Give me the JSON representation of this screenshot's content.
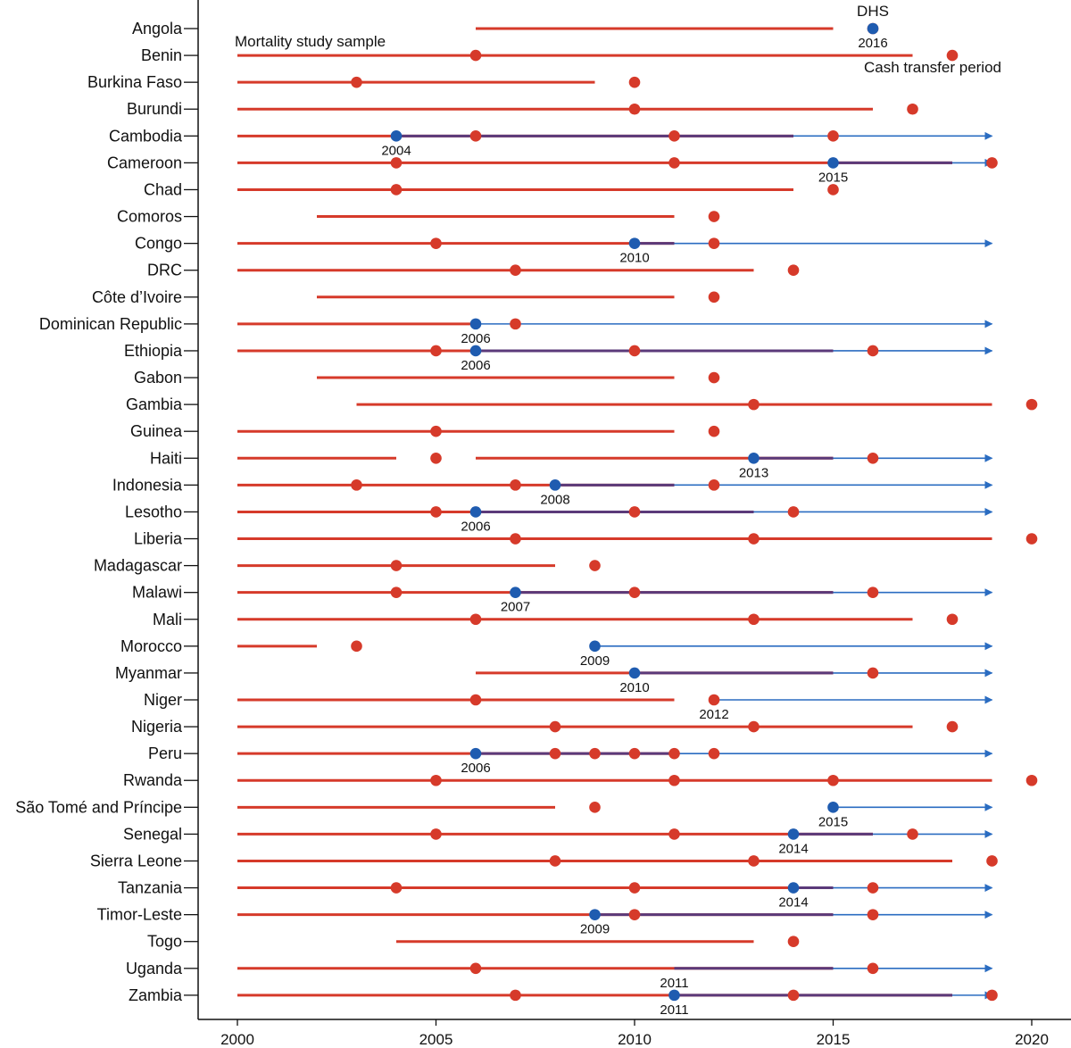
{
  "chart_data": {
    "type": "timeline",
    "xlim": [
      2000,
      2020
    ],
    "x_ticks": [
      "2000",
      "2005",
      "2010",
      "2015",
      "2020"
    ],
    "colors": {
      "mortality_sample": "#d63a2a",
      "dhs": "#d63a2a",
      "cash_transfer": "#2a6cc1",
      "overlap": "#5b3a7a",
      "cash_start": "#1f5cb0"
    },
    "annotations": {
      "dhs": "DHS",
      "mortality": "Mortality study sample",
      "cash": "Cash transfer period"
    },
    "countries": [
      {
        "name": "Angola",
        "segments": [
          [
            2006,
            2015
          ]
        ],
        "dhs": [
          2016
        ],
        "cash_start": 2016,
        "cash_start_label": "2016",
        "arrow": false
      },
      {
        "name": "Benin",
        "segments": [
          [
            2000,
            2017
          ]
        ],
        "dhs": [
          2006,
          2018
        ],
        "cash_start": null,
        "arrow": false
      },
      {
        "name": "Burkina Faso",
        "segments": [
          [
            2000,
            2009
          ]
        ],
        "dhs": [
          2003,
          2010
        ],
        "cash_start": null,
        "arrow": true
      },
      {
        "name": "Burundi",
        "segments": [
          [
            2000,
            2016
          ]
        ],
        "dhs": [
          2010,
          2017
        ],
        "cash_start": null,
        "arrow": false
      },
      {
        "name": "Cambodia",
        "segments": [
          [
            2000,
            2014
          ]
        ],
        "dhs": [
          2006,
          2011,
          2015
        ],
        "cash_start": 2004,
        "cash_start_label": "2004",
        "arrow": true
      },
      {
        "name": "Cameroon",
        "segments": [
          [
            2000,
            2018
          ]
        ],
        "dhs": [
          2004,
          2011,
          2019
        ],
        "cash_start": 2015,
        "cash_start_label": "2015",
        "arrow": true
      },
      {
        "name": "Chad",
        "segments": [
          [
            2000,
            2014
          ]
        ],
        "dhs": [
          2004,
          2015
        ],
        "cash_start": null,
        "arrow": false
      },
      {
        "name": "Comoros",
        "segments": [
          [
            2002,
            2011
          ]
        ],
        "dhs": [
          2012
        ],
        "cash_start": null,
        "arrow": false
      },
      {
        "name": "Congo",
        "segments": [
          [
            2000,
            2011
          ]
        ],
        "dhs": [
          2005,
          2012
        ],
        "cash_start": 2010,
        "cash_start_label": "2010",
        "arrow": true
      },
      {
        "name": "DRC",
        "segments": [
          [
            2000,
            2013
          ]
        ],
        "dhs": [
          2007,
          2014
        ],
        "cash_start": null,
        "arrow": false
      },
      {
        "name": "Côte d’Ivoire",
        "segments": [
          [
            2002,
            2011
          ]
        ],
        "dhs": [
          2012
        ],
        "cash_start": null,
        "arrow": false
      },
      {
        "name": "Dominican Republic",
        "segments": [
          [
            2000,
            2006
          ]
        ],
        "dhs": [
          2007
        ],
        "cash_start": 2006,
        "cash_start_label": "2006",
        "arrow": true
      },
      {
        "name": "Ethiopia",
        "segments": [
          [
            2000,
            2015
          ]
        ],
        "dhs": [
          2005,
          2010,
          2016
        ],
        "cash_start": 2006,
        "cash_start_label": "2006",
        "arrow": true
      },
      {
        "name": "Gabon",
        "segments": [
          [
            2002,
            2011
          ]
        ],
        "dhs": [
          2012
        ],
        "cash_start": null,
        "arrow": false
      },
      {
        "name": "Gambia",
        "segments": [
          [
            2003,
            2019
          ]
        ],
        "dhs": [
          2013,
          2020
        ],
        "cash_start": null,
        "arrow": false
      },
      {
        "name": "Guinea",
        "segments": [
          [
            2000,
            2011
          ]
        ],
        "dhs": [
          2005,
          2012
        ],
        "cash_start": null,
        "arrow": false
      },
      {
        "name": "Haiti",
        "segments": [
          [
            2000,
            2004
          ],
          [
            2006,
            2015
          ]
        ],
        "dhs": [
          2005,
          2016
        ],
        "cash_start": 2013,
        "cash_start_label": "2013",
        "arrow": true
      },
      {
        "name": "Indonesia",
        "segments": [
          [
            2000,
            2011
          ]
        ],
        "dhs": [
          2003,
          2007,
          2012
        ],
        "cash_start": 2008,
        "cash_start_label": "2008",
        "arrow": true
      },
      {
        "name": "Lesotho",
        "segments": [
          [
            2000,
            2013
          ]
        ],
        "dhs": [
          2005,
          2010,
          2014
        ],
        "cash_start": 2006,
        "cash_start_label": "2006",
        "arrow": true
      },
      {
        "name": "Liberia",
        "segments": [
          [
            2000,
            2019
          ]
        ],
        "dhs": [
          2007,
          2013,
          2020
        ],
        "cash_start": null,
        "arrow": false
      },
      {
        "name": "Madagascar",
        "segments": [
          [
            2000,
            2008
          ]
        ],
        "dhs": [
          2004,
          2009
        ],
        "cash_start": null,
        "arrow": false
      },
      {
        "name": "Malawi",
        "segments": [
          [
            2000,
            2015
          ]
        ],
        "dhs": [
          2004,
          2010,
          2016
        ],
        "cash_start": 2007,
        "cash_start_label": "2007",
        "arrow": true
      },
      {
        "name": "Mali",
        "segments": [
          [
            2000,
            2017
          ]
        ],
        "dhs": [
          2006,
          2013,
          2018
        ],
        "cash_start": null,
        "arrow": false
      },
      {
        "name": "Morocco",
        "segments": [
          [
            2000,
            2002
          ]
        ],
        "dhs": [
          2003
        ],
        "cash_start": 2009,
        "cash_start_label": "2009",
        "arrow": true
      },
      {
        "name": "Myanmar",
        "segments": [
          [
            2006,
            2015
          ]
        ],
        "dhs": [
          2016
        ],
        "cash_start": 2010,
        "cash_start_label": "2010",
        "arrow": true
      },
      {
        "name": "Niger",
        "segments": [
          [
            2000,
            2011
          ]
        ],
        "dhs": [
          2006,
          2012
        ],
        "cash_start": 2012,
        "cash_start_label": "2012",
        "cash_start_hidden": true,
        "arrow": true
      },
      {
        "name": "Nigeria",
        "segments": [
          [
            2000,
            2017
          ]
        ],
        "dhs": [
          2008,
          2013,
          2018
        ],
        "cash_start": null,
        "arrow": false
      },
      {
        "name": "Peru",
        "segments": [
          [
            2000,
            2011
          ]
        ],
        "dhs": [
          2008,
          2009,
          2010,
          2011,
          2012
        ],
        "cash_start": 2006,
        "cash_start_label": "2006",
        "arrow": true
      },
      {
        "name": "Rwanda",
        "segments": [
          [
            2000,
            2019
          ]
        ],
        "dhs": [
          2005,
          2011,
          2015,
          2020
        ],
        "cash_start": null,
        "arrow": false
      },
      {
        "name": "São Tomé and Príncipe",
        "segments": [
          [
            2000,
            2008
          ]
        ],
        "dhs": [
          2009
        ],
        "cash_start": 2015,
        "cash_start_label": "2015",
        "arrow": true
      },
      {
        "name": "Senegal",
        "segments": [
          [
            2000,
            2016
          ]
        ],
        "dhs": [
          2005,
          2011,
          2017
        ],
        "cash_start": 2014,
        "cash_start_label": "2014",
        "arrow": true
      },
      {
        "name": "Sierra Leone",
        "segments": [
          [
            2000,
            2018
          ]
        ],
        "dhs": [
          2008,
          2013,
          2019
        ],
        "cash_start": null,
        "arrow": false
      },
      {
        "name": "Tanzania",
        "segments": [
          [
            2000,
            2015
          ]
        ],
        "dhs": [
          2004,
          2010,
          2016
        ],
        "cash_start": 2014,
        "cash_start_label": "2014",
        "arrow": true
      },
      {
        "name": "Timor-Leste",
        "segments": [
          [
            2000,
            2015
          ]
        ],
        "dhs": [
          2010,
          2016
        ],
        "cash_start": 2009,
        "cash_start_label": "2009",
        "arrow": true
      },
      {
        "name": "Togo",
        "segments": [
          [
            2004,
            2013
          ]
        ],
        "dhs": [
          2014
        ],
        "cash_start": null,
        "arrow": false
      },
      {
        "name": "Uganda",
        "segments": [
          [
            2000,
            2015
          ]
        ],
        "dhs": [
          2006,
          2016
        ],
        "cash_start": 2011,
        "cash_start_label": "2011",
        "cash_start_hidden": true,
        "arrow": true
      },
      {
        "name": "Zambia",
        "segments": [
          [
            2000,
            2018
          ]
        ],
        "dhs": [
          2007,
          2014,
          2019
        ],
        "cash_start": 2011,
        "cash_start_label": "2011",
        "arrow": true
      }
    ]
  }
}
